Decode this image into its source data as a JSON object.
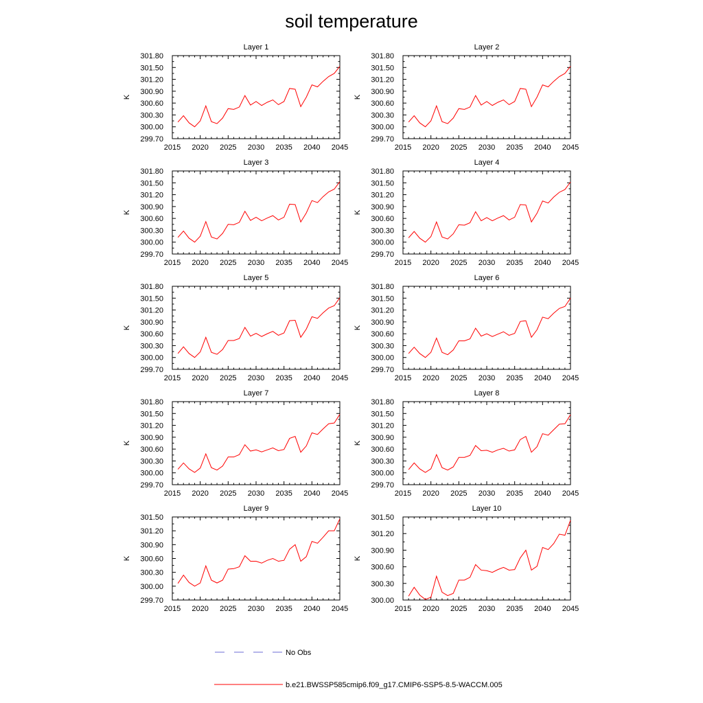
{
  "title": "soil temperature",
  "legend": {
    "obs_label": "No Obs",
    "obs_color": "#6b6bd6",
    "model_label": "b.e21.BWSSP585cmip6.f09_g17.CMIP6-SSP5-8.5-WACCM.005",
    "model_color": "#ff0000"
  },
  "chart_data": [
    {
      "type": "line",
      "title": "Layer 1",
      "xlabel": "",
      "ylabel": "K",
      "xlim": [
        2015,
        2045
      ],
      "ylim": [
        299.7,
        301.8
      ],
      "xticks": [
        "2015",
        "2020",
        "2025",
        "2030",
        "2035",
        "2040",
        "2045"
      ],
      "yticks": [
        "299.70",
        "300.00",
        "300.30",
        "300.60",
        "300.90",
        "301.20",
        "301.50",
        "301.80"
      ],
      "series": [
        {
          "name": "b.e21.BWSSP585cmip6.f09_g17.CMIP6-SSP5-8.5-WACCM.005",
          "x": [
            2016,
            2017,
            2018,
            2019,
            2020,
            2021,
            2022,
            2023,
            2024,
            2025,
            2026,
            2027,
            2028,
            2029,
            2030,
            2031,
            2032,
            2033,
            2034,
            2035,
            2036,
            2037,
            2038,
            2039,
            2040,
            2041,
            2042,
            2043,
            2044,
            2045
          ],
          "values": [
            300.12,
            300.28,
            300.1,
            300.0,
            300.15,
            300.53,
            300.13,
            300.08,
            300.22,
            300.46,
            300.44,
            300.5,
            300.79,
            300.55,
            300.64,
            300.54,
            300.62,
            300.68,
            300.56,
            300.64,
            300.97,
            300.95,
            300.51,
            300.75,
            301.06,
            301.01,
            301.15,
            301.27,
            301.35,
            301.53
          ]
        }
      ]
    },
    {
      "type": "line",
      "title": "Layer 2",
      "xlabel": "",
      "ylabel": "K",
      "xlim": [
        2015,
        2045
      ],
      "ylim": [
        299.7,
        301.8
      ],
      "xticks": [
        "2015",
        "2020",
        "2025",
        "2030",
        "2035",
        "2040",
        "2045"
      ],
      "yticks": [
        "299.70",
        "300.00",
        "300.30",
        "300.60",
        "300.90",
        "301.20",
        "301.50",
        "301.80"
      ],
      "series": [
        {
          "name": "b.e21.BWSSP585cmip6.f09_g17.CMIP6-SSP5-8.5-WACCM.005",
          "x": [
            2016,
            2017,
            2018,
            2019,
            2020,
            2021,
            2022,
            2023,
            2024,
            2025,
            2026,
            2027,
            2028,
            2029,
            2030,
            2031,
            2032,
            2033,
            2034,
            2035,
            2036,
            2037,
            2038,
            2039,
            2040,
            2041,
            2042,
            2043,
            2044,
            2045
          ],
          "values": [
            300.12,
            300.28,
            300.1,
            300.0,
            300.15,
            300.53,
            300.13,
            300.08,
            300.22,
            300.46,
            300.44,
            300.5,
            300.79,
            300.55,
            300.64,
            300.54,
            300.62,
            300.68,
            300.56,
            300.64,
            300.97,
            300.95,
            300.51,
            300.75,
            301.06,
            301.01,
            301.15,
            301.27,
            301.35,
            301.53
          ]
        }
      ]
    },
    {
      "type": "line",
      "title": "Layer 3",
      "xlabel": "",
      "ylabel": "K",
      "xlim": [
        2015,
        2045
      ],
      "ylim": [
        299.7,
        301.8
      ],
      "xticks": [
        "2015",
        "2020",
        "2025",
        "2030",
        "2035",
        "2040",
        "2045"
      ],
      "yticks": [
        "299.70",
        "300.00",
        "300.30",
        "300.60",
        "300.90",
        "301.20",
        "301.50",
        "301.80"
      ],
      "series": [
        {
          "name": "b.e21.BWSSP585cmip6.f09_g17.CMIP6-SSP5-8.5-WACCM.005",
          "x": [
            2016,
            2017,
            2018,
            2019,
            2020,
            2021,
            2022,
            2023,
            2024,
            2025,
            2026,
            2027,
            2028,
            2029,
            2030,
            2031,
            2032,
            2033,
            2034,
            2035,
            2036,
            2037,
            2038,
            2039,
            2040,
            2041,
            2042,
            2043,
            2044,
            2045
          ],
          "values": [
            300.12,
            300.28,
            300.1,
            300.0,
            300.15,
            300.52,
            300.13,
            300.08,
            300.22,
            300.45,
            300.44,
            300.5,
            300.78,
            300.55,
            300.63,
            300.54,
            300.61,
            300.67,
            300.56,
            300.63,
            300.96,
            300.95,
            300.51,
            300.74,
            301.05,
            301.0,
            301.15,
            301.27,
            301.34,
            301.53
          ]
        }
      ]
    },
    {
      "type": "line",
      "title": "Layer 4",
      "xlabel": "",
      "ylabel": "K",
      "xlim": [
        2015,
        2045
      ],
      "ylim": [
        299.7,
        301.8
      ],
      "xticks": [
        "2015",
        "2020",
        "2025",
        "2030",
        "2035",
        "2040",
        "2045"
      ],
      "yticks": [
        "299.70",
        "300.00",
        "300.30",
        "300.60",
        "300.90",
        "301.20",
        "301.50",
        "301.80"
      ],
      "series": [
        {
          "name": "b.e21.BWSSP585cmip6.f09_g17.CMIP6-SSP5-8.5-WACCM.005",
          "x": [
            2016,
            2017,
            2018,
            2019,
            2020,
            2021,
            2022,
            2023,
            2024,
            2025,
            2026,
            2027,
            2028,
            2029,
            2030,
            2031,
            2032,
            2033,
            2034,
            2035,
            2036,
            2037,
            2038,
            2039,
            2040,
            2041,
            2042,
            2043,
            2044,
            2045
          ],
          "values": [
            300.11,
            300.27,
            300.1,
            300.0,
            300.14,
            300.51,
            300.13,
            300.08,
            300.21,
            300.44,
            300.43,
            300.49,
            300.77,
            300.54,
            300.62,
            300.54,
            300.61,
            300.67,
            300.56,
            300.63,
            300.95,
            300.94,
            300.51,
            300.73,
            301.04,
            300.99,
            301.14,
            301.26,
            301.33,
            301.52
          ]
        }
      ]
    },
    {
      "type": "line",
      "title": "Layer 5",
      "xlabel": "",
      "ylabel": "K",
      "xlim": [
        2015,
        2045
      ],
      "ylim": [
        299.7,
        301.8
      ],
      "xticks": [
        "2015",
        "2020",
        "2025",
        "2030",
        "2035",
        "2040",
        "2045"
      ],
      "yticks": [
        "299.70",
        "300.00",
        "300.30",
        "300.60",
        "300.90",
        "301.20",
        "301.50",
        "301.80"
      ],
      "series": [
        {
          "name": "b.e21.BWSSP585cmip6.f09_g17.CMIP6-SSP5-8.5-WACCM.005",
          "x": [
            2016,
            2017,
            2018,
            2019,
            2020,
            2021,
            2022,
            2023,
            2024,
            2025,
            2026,
            2027,
            2028,
            2029,
            2030,
            2031,
            2032,
            2033,
            2034,
            2035,
            2036,
            2037,
            2038,
            2039,
            2040,
            2041,
            2042,
            2043,
            2044,
            2045
          ],
          "values": [
            300.1,
            300.27,
            300.1,
            300.0,
            300.14,
            300.51,
            300.13,
            300.08,
            300.2,
            300.43,
            300.43,
            300.48,
            300.76,
            300.54,
            300.61,
            300.53,
            300.6,
            300.66,
            300.56,
            300.62,
            300.93,
            300.94,
            300.51,
            300.72,
            301.03,
            300.99,
            301.13,
            301.25,
            301.31,
            301.51
          ]
        }
      ]
    },
    {
      "type": "line",
      "title": "Layer 6",
      "xlabel": "",
      "ylabel": "K",
      "xlim": [
        2015,
        2045
      ],
      "ylim": [
        299.7,
        301.8
      ],
      "xticks": [
        "2015",
        "2020",
        "2025",
        "2030",
        "2035",
        "2040",
        "2045"
      ],
      "yticks": [
        "299.70",
        "300.00",
        "300.30",
        "300.60",
        "300.90",
        "301.20",
        "301.50",
        "301.80"
      ],
      "series": [
        {
          "name": "b.e21.BWSSP585cmip6.f09_g17.CMIP6-SSP5-8.5-WACCM.005",
          "x": [
            2016,
            2017,
            2018,
            2019,
            2020,
            2021,
            2022,
            2023,
            2024,
            2025,
            2026,
            2027,
            2028,
            2029,
            2030,
            2031,
            2032,
            2033,
            2034,
            2035,
            2036,
            2037,
            2038,
            2039,
            2040,
            2041,
            2042,
            2043,
            2044,
            2045
          ],
          "values": [
            300.1,
            300.26,
            300.1,
            300.0,
            300.13,
            300.49,
            300.13,
            300.07,
            300.19,
            300.42,
            300.42,
            300.47,
            300.74,
            300.54,
            300.6,
            300.53,
            300.59,
            300.65,
            300.56,
            300.61,
            300.91,
            300.93,
            300.51,
            300.7,
            301.02,
            300.98,
            301.12,
            301.24,
            301.29,
            301.5
          ]
        }
      ]
    },
    {
      "type": "line",
      "title": "Layer 7",
      "xlabel": "",
      "ylabel": "K",
      "xlim": [
        2015,
        2045
      ],
      "ylim": [
        299.7,
        301.8
      ],
      "xticks": [
        "2015",
        "2020",
        "2025",
        "2030",
        "2035",
        "2040",
        "2045"
      ],
      "yticks": [
        "299.70",
        "300.00",
        "300.30",
        "300.60",
        "300.90",
        "301.20",
        "301.50",
        "301.80"
      ],
      "series": [
        {
          "name": "b.e21.BWSSP585cmip6.f09_g17.CMIP6-SSP5-8.5-WACCM.005",
          "x": [
            2016,
            2017,
            2018,
            2019,
            2020,
            2021,
            2022,
            2023,
            2024,
            2025,
            2026,
            2027,
            2028,
            2029,
            2030,
            2031,
            2032,
            2033,
            2034,
            2035,
            2036,
            2037,
            2038,
            2039,
            2040,
            2041,
            2042,
            2043,
            2044,
            2045
          ],
          "values": [
            300.09,
            300.25,
            300.1,
            300.01,
            300.12,
            300.48,
            300.13,
            300.07,
            300.17,
            300.4,
            300.4,
            300.46,
            300.71,
            300.55,
            300.58,
            300.53,
            300.58,
            300.63,
            300.56,
            300.59,
            300.87,
            300.92,
            300.52,
            300.68,
            301.01,
            300.97,
            301.11,
            301.24,
            301.26,
            301.48
          ]
        }
      ]
    },
    {
      "type": "line",
      "title": "Layer 8",
      "xlabel": "",
      "ylabel": "K",
      "xlim": [
        2015,
        2045
      ],
      "ylim": [
        299.7,
        301.8
      ],
      "xticks": [
        "2015",
        "2020",
        "2025",
        "2030",
        "2035",
        "2040",
        "2045"
      ],
      "yticks": [
        "299.70",
        "300.00",
        "300.30",
        "300.60",
        "300.90",
        "301.20",
        "301.50",
        "301.80"
      ],
      "series": [
        {
          "name": "b.e21.BWSSP585cmip6.f09_g17.CMIP6-SSP5-8.5-WACCM.005",
          "x": [
            2016,
            2017,
            2018,
            2019,
            2020,
            2021,
            2022,
            2023,
            2024,
            2025,
            2026,
            2027,
            2028,
            2029,
            2030,
            2031,
            2032,
            2033,
            2034,
            2035,
            2036,
            2037,
            2038,
            2039,
            2040,
            2041,
            2042,
            2043,
            2044,
            2045
          ],
          "values": [
            300.08,
            300.25,
            300.1,
            300.01,
            300.1,
            300.46,
            300.13,
            300.07,
            300.15,
            300.39,
            300.39,
            300.44,
            300.69,
            300.56,
            300.57,
            300.52,
            300.58,
            300.62,
            300.55,
            300.58,
            300.84,
            300.92,
            300.52,
            300.66,
            300.99,
            300.95,
            301.09,
            301.23,
            301.24,
            301.47
          ]
        }
      ]
    },
    {
      "type": "line",
      "title": "Layer 9",
      "xlabel": "",
      "ylabel": "K",
      "xlim": [
        2015,
        2045
      ],
      "ylim": [
        299.7,
        301.5
      ],
      "xticks": [
        "2015",
        "2020",
        "2025",
        "2030",
        "2035",
        "2040",
        "2045"
      ],
      "yticks": [
        "299.70",
        "300.00",
        "300.30",
        "300.60",
        "300.90",
        "301.20",
        "301.50"
      ],
      "series": [
        {
          "name": "b.e21.BWSSP585cmip6.f09_g17.CMIP6-SSP5-8.5-WACCM.005",
          "x": [
            2016,
            2017,
            2018,
            2019,
            2020,
            2021,
            2022,
            2023,
            2024,
            2025,
            2026,
            2027,
            2028,
            2029,
            2030,
            2031,
            2032,
            2033,
            2034,
            2035,
            2036,
            2037,
            2038,
            2039,
            2040,
            2041,
            2042,
            2043,
            2044,
            2045
          ],
          "values": [
            300.06,
            300.24,
            300.08,
            300.0,
            300.07,
            300.44,
            300.13,
            300.07,
            300.13,
            300.37,
            300.38,
            300.42,
            300.66,
            300.54,
            300.54,
            300.5,
            300.56,
            300.6,
            300.54,
            300.56,
            300.8,
            300.9,
            300.54,
            300.64,
            300.97,
            300.93,
            301.06,
            301.2,
            301.2,
            301.46
          ]
        }
      ]
    },
    {
      "type": "line",
      "title": "Layer 10",
      "xlabel": "",
      "ylabel": "K",
      "xlim": [
        2015,
        2045
      ],
      "ylim": [
        300.0,
        301.5
      ],
      "xticks": [
        "2015",
        "2020",
        "2025",
        "2030",
        "2035",
        "2040",
        "2045"
      ],
      "yticks": [
        "300.00",
        "300.30",
        "300.60",
        "300.90",
        "301.20",
        "301.50"
      ],
      "series": [
        {
          "name": "b.e21.BWSSP585cmip6.f09_g17.CMIP6-SSP5-8.5-WACCM.005",
          "x": [
            2016,
            2017,
            2018,
            2019,
            2020,
            2021,
            2022,
            2023,
            2024,
            2025,
            2026,
            2027,
            2028,
            2029,
            2030,
            2031,
            2032,
            2033,
            2034,
            2035,
            2036,
            2037,
            2038,
            2039,
            2040,
            2041,
            2042,
            2043,
            2044,
            2045
          ],
          "values": [
            300.07,
            300.23,
            300.09,
            300.01,
            300.05,
            300.43,
            300.14,
            300.08,
            300.12,
            300.36,
            300.36,
            300.41,
            300.64,
            300.54,
            300.53,
            300.5,
            300.55,
            300.59,
            300.54,
            300.55,
            300.76,
            300.9,
            300.54,
            300.61,
            300.95,
            300.91,
            301.02,
            301.19,
            301.17,
            301.44
          ]
        }
      ]
    }
  ]
}
